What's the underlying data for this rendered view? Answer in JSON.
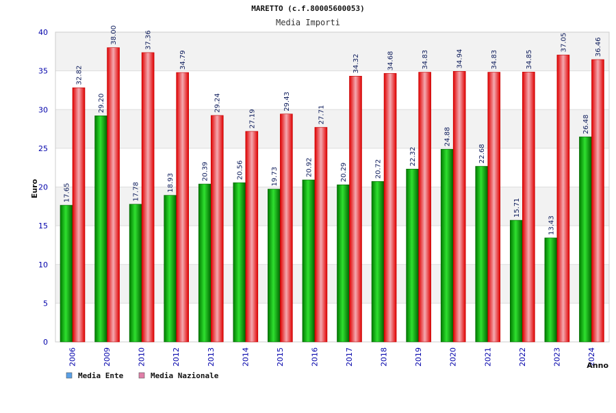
{
  "chart_data": {
    "type": "bar",
    "title": "MARETTO (c.f.80005600053)",
    "subtitle": "Media Importi",
    "ylabel": "Euro",
    "xlabel": "Anno",
    "ylim": [
      0,
      40
    ],
    "yticks": [
      0,
      5,
      10,
      15,
      20,
      25,
      30,
      35,
      40
    ],
    "grid": true,
    "legend_position": "bottom-left",
    "categories": [
      "2006",
      "2009",
      "2010",
      "2012",
      "2013",
      "2014",
      "2015",
      "2016",
      "2017",
      "2018",
      "2019",
      "2020",
      "2021",
      "2022",
      "2023",
      "2024"
    ],
    "series": [
      {
        "name": "Media Ente",
        "color": "#00b000",
        "legend_color": "#5aa0e6",
        "values": [
          17.65,
          29.2,
          17.78,
          18.93,
          20.39,
          20.56,
          19.73,
          20.92,
          20.29,
          20.72,
          22.32,
          24.88,
          22.68,
          15.71,
          13.43,
          26.48
        ],
        "labels": [
          "17.65",
          "29.20",
          "17.78",
          "18.93",
          "20.39",
          "20.56",
          "19.73",
          "20.92",
          "20.29",
          "20.72",
          "22.32",
          "24.88",
          "22.68",
          "15.71",
          "13.43",
          "26.48"
        ]
      },
      {
        "name": "Media Nazionale",
        "color": "#ee0000",
        "legend_color": "#e07fa8",
        "values": [
          32.82,
          38.0,
          37.36,
          34.79,
          29.24,
          27.19,
          29.43,
          27.71,
          34.32,
          34.68,
          34.83,
          34.94,
          34.83,
          34.85,
          37.05,
          36.46
        ],
        "labels": [
          "32.82",
          "38.00",
          "37.36",
          "34.79",
          "29.24",
          "27.19",
          "29.43",
          "27.71",
          "34.32",
          "34.68",
          "34.83",
          "34.94",
          "34.83",
          "34.85",
          "37.05",
          "36.46"
        ]
      }
    ]
  }
}
